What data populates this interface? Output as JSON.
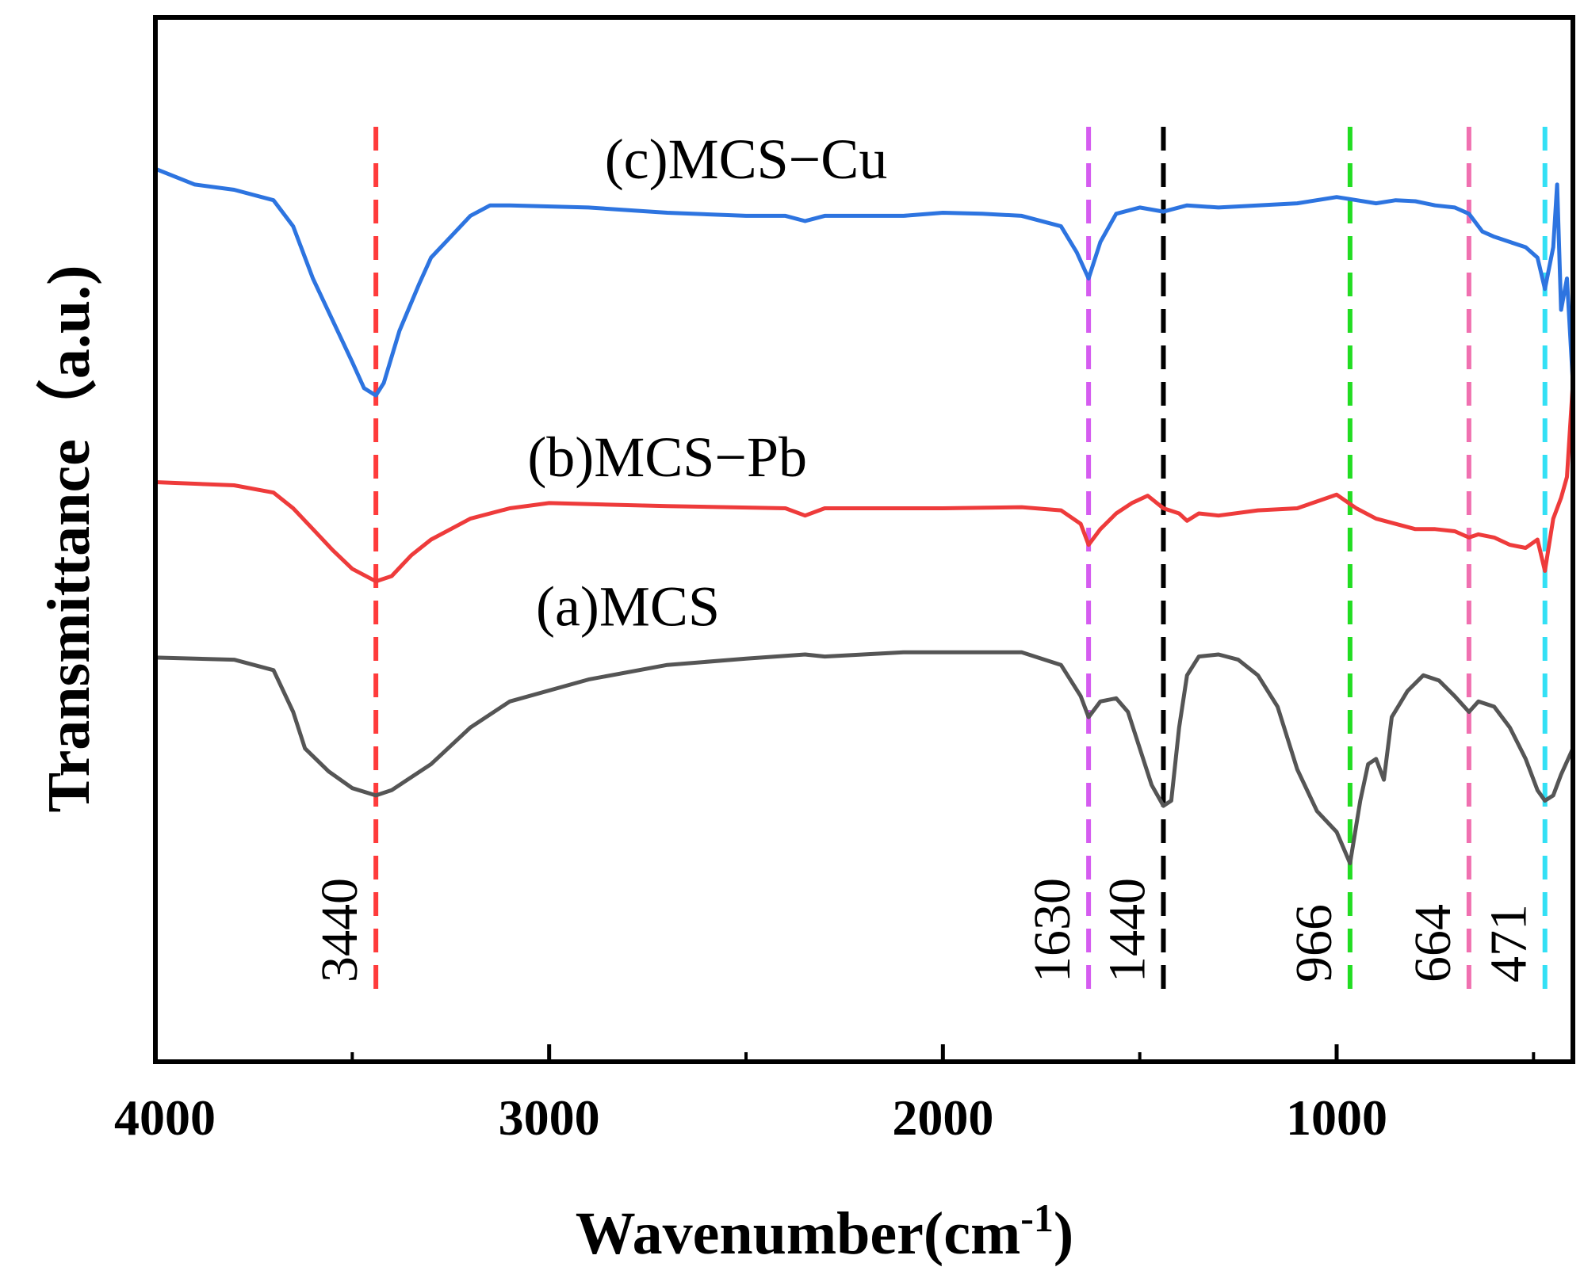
{
  "chart_data": {
    "type": "line",
    "title": "",
    "xlabel": "Wavenumber(cm",
    "xlabel_sup": "-1",
    "xlabel_close": ")",
    "ylabel": "Transmittance（a.u.)",
    "xlim": [
      4000,
      400
    ],
    "ylim": [
      0,
      10
    ],
    "x_reversed": true,
    "y_tick_labels": false,
    "xticks": [
      4000,
      3000,
      2000,
      1000
    ],
    "xtick_labels": [
      "4000",
      "3000",
      "2000",
      "1000"
    ],
    "series": [
      {
        "name": "(a)MCS",
        "color": "#555555",
        "label_x": 2800,
        "points": [
          [
            4000,
            3.87
          ],
          [
            3800,
            3.85
          ],
          [
            3700,
            3.75
          ],
          [
            3650,
            3.35
          ],
          [
            3620,
            3.0
          ],
          [
            3560,
            2.78
          ],
          [
            3500,
            2.62
          ],
          [
            3440,
            2.55
          ],
          [
            3400,
            2.6
          ],
          [
            3300,
            2.85
          ],
          [
            3200,
            3.2
          ],
          [
            3100,
            3.45
          ],
          [
            2900,
            3.66
          ],
          [
            2700,
            3.8
          ],
          [
            2500,
            3.86
          ],
          [
            2350,
            3.9
          ],
          [
            2300,
            3.88
          ],
          [
            2100,
            3.92
          ],
          [
            1900,
            3.92
          ],
          [
            1800,
            3.92
          ],
          [
            1700,
            3.8
          ],
          [
            1650,
            3.5
          ],
          [
            1630,
            3.3
          ],
          [
            1600,
            3.45
          ],
          [
            1560,
            3.48
          ],
          [
            1530,
            3.35
          ],
          [
            1500,
            3.0
          ],
          [
            1470,
            2.65
          ],
          [
            1440,
            2.45
          ],
          [
            1420,
            2.5
          ],
          [
            1400,
            3.2
          ],
          [
            1380,
            3.7
          ],
          [
            1350,
            3.88
          ],
          [
            1300,
            3.9
          ],
          [
            1250,
            3.85
          ],
          [
            1200,
            3.7
          ],
          [
            1150,
            3.4
          ],
          [
            1100,
            2.8
          ],
          [
            1050,
            2.4
          ],
          [
            1000,
            2.2
          ],
          [
            966,
            1.9
          ],
          [
            940,
            2.5
          ],
          [
            920,
            2.85
          ],
          [
            900,
            2.9
          ],
          [
            880,
            2.7
          ],
          [
            860,
            3.3
          ],
          [
            820,
            3.55
          ],
          [
            780,
            3.7
          ],
          [
            740,
            3.65
          ],
          [
            700,
            3.5
          ],
          [
            664,
            3.35
          ],
          [
            640,
            3.45
          ],
          [
            600,
            3.4
          ],
          [
            560,
            3.2
          ],
          [
            520,
            2.9
          ],
          [
            490,
            2.6
          ],
          [
            471,
            2.5
          ],
          [
            450,
            2.55
          ],
          [
            430,
            2.75
          ],
          [
            400,
            3.0
          ]
        ]
      },
      {
        "name": "(b)MCS−Pb",
        "color": "#ee3b3b",
        "label_x": 2700,
        "points": [
          [
            4000,
            5.55
          ],
          [
            3800,
            5.52
          ],
          [
            3700,
            5.45
          ],
          [
            3650,
            5.3
          ],
          [
            3600,
            5.1
          ],
          [
            3550,
            4.9
          ],
          [
            3500,
            4.72
          ],
          [
            3440,
            4.6
          ],
          [
            3400,
            4.65
          ],
          [
            3350,
            4.85
          ],
          [
            3300,
            5.0
          ],
          [
            3250,
            5.1
          ],
          [
            3200,
            5.2
          ],
          [
            3100,
            5.3
          ],
          [
            3000,
            5.35
          ],
          [
            2700,
            5.32
          ],
          [
            2400,
            5.3
          ],
          [
            2350,
            5.23
          ],
          [
            2300,
            5.3
          ],
          [
            2000,
            5.3
          ],
          [
            1800,
            5.31
          ],
          [
            1700,
            5.28
          ],
          [
            1650,
            5.15
          ],
          [
            1630,
            4.95
          ],
          [
            1600,
            5.1
          ],
          [
            1560,
            5.25
          ],
          [
            1520,
            5.35
          ],
          [
            1480,
            5.42
          ],
          [
            1440,
            5.3
          ],
          [
            1400,
            5.25
          ],
          [
            1380,
            5.18
          ],
          [
            1350,
            5.25
          ],
          [
            1300,
            5.23
          ],
          [
            1200,
            5.28
          ],
          [
            1100,
            5.3
          ],
          [
            1000,
            5.43
          ],
          [
            950,
            5.3
          ],
          [
            900,
            5.2
          ],
          [
            850,
            5.15
          ],
          [
            800,
            5.1
          ],
          [
            750,
            5.1
          ],
          [
            700,
            5.08
          ],
          [
            664,
            5.02
          ],
          [
            640,
            5.05
          ],
          [
            600,
            5.02
          ],
          [
            560,
            4.95
          ],
          [
            520,
            4.92
          ],
          [
            490,
            5.0
          ],
          [
            471,
            4.7
          ],
          [
            450,
            5.2
          ],
          [
            430,
            5.4
          ],
          [
            415,
            5.6
          ],
          [
            405,
            6.2
          ],
          [
            400,
            6.5
          ]
        ]
      },
      {
        "name": "(c)MCS−Cu",
        "color": "#2d74e0",
        "label_x": 2500,
        "points": [
          [
            4000,
            8.55
          ],
          [
            3900,
            8.4
          ],
          [
            3800,
            8.35
          ],
          [
            3700,
            8.25
          ],
          [
            3650,
            8.0
          ],
          [
            3600,
            7.5
          ],
          [
            3550,
            7.1
          ],
          [
            3500,
            6.7
          ],
          [
            3470,
            6.45
          ],
          [
            3440,
            6.38
          ],
          [
            3420,
            6.5
          ],
          [
            3380,
            7.0
          ],
          [
            3330,
            7.45
          ],
          [
            3300,
            7.7
          ],
          [
            3250,
            7.9
          ],
          [
            3200,
            8.1
          ],
          [
            3150,
            8.2
          ],
          [
            3100,
            8.2
          ],
          [
            2900,
            8.18
          ],
          [
            2700,
            8.13
          ],
          [
            2500,
            8.1
          ],
          [
            2400,
            8.1
          ],
          [
            2350,
            8.05
          ],
          [
            2300,
            8.1
          ],
          [
            2100,
            8.1
          ],
          [
            2000,
            8.13
          ],
          [
            1900,
            8.12
          ],
          [
            1800,
            8.1
          ],
          [
            1700,
            8.0
          ],
          [
            1660,
            7.75
          ],
          [
            1630,
            7.5
          ],
          [
            1600,
            7.85
          ],
          [
            1560,
            8.12
          ],
          [
            1500,
            8.18
          ],
          [
            1440,
            8.14
          ],
          [
            1380,
            8.2
          ],
          [
            1300,
            8.18
          ],
          [
            1200,
            8.2
          ],
          [
            1100,
            8.22
          ],
          [
            1000,
            8.28
          ],
          [
            966,
            8.26
          ],
          [
            900,
            8.22
          ],
          [
            850,
            8.25
          ],
          [
            800,
            8.24
          ],
          [
            750,
            8.2
          ],
          [
            700,
            8.18
          ],
          [
            664,
            8.12
          ],
          [
            630,
            7.95
          ],
          [
            600,
            7.9
          ],
          [
            560,
            7.85
          ],
          [
            520,
            7.8
          ],
          [
            490,
            7.7
          ],
          [
            471,
            7.4
          ],
          [
            450,
            7.8
          ],
          [
            440,
            8.4
          ],
          [
            430,
            7.2
          ],
          [
            415,
            7.5
          ],
          [
            400,
            6.5
          ]
        ]
      }
    ],
    "peaks": [
      {
        "label": "3440",
        "x": 3440,
        "color": "#ff3b3b"
      },
      {
        "label": "1630",
        "x": 1630,
        "color": "#d55cf0"
      },
      {
        "label": "1440",
        "x": 1440,
        "color": "#000000"
      },
      {
        "label": "966",
        "x": 966,
        "color": "#22dd22"
      },
      {
        "label": "664",
        "x": 664,
        "color": "#f070b0"
      },
      {
        "label": "471",
        "x": 471,
        "color": "#33e0f5"
      }
    ]
  }
}
